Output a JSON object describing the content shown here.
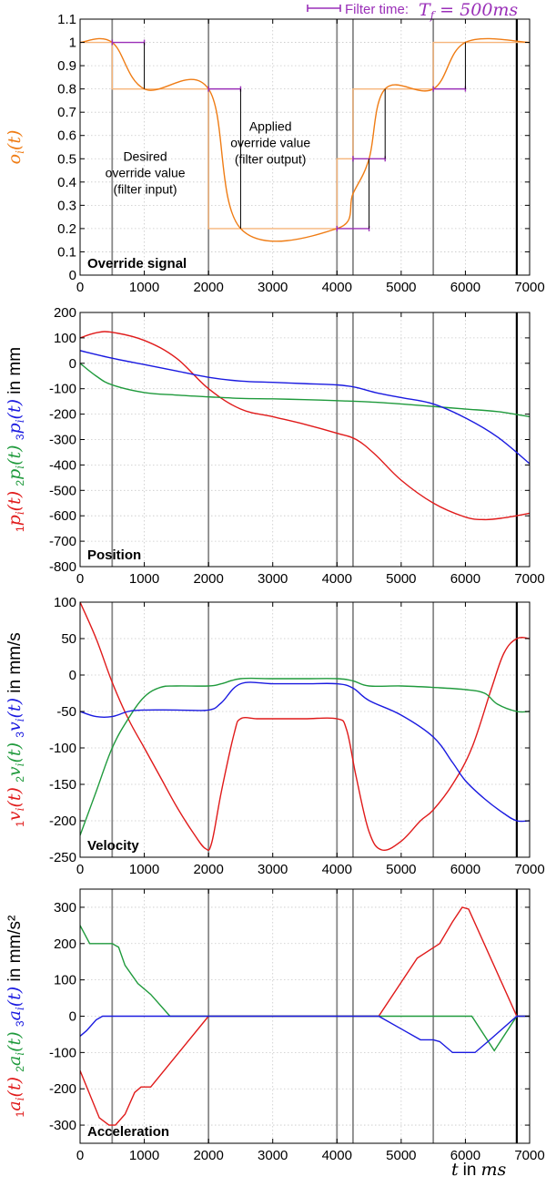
{
  "legend": {
    "filter_prefix": "Filter time:",
    "filter_symbol": "T",
    "filter_sub": "f",
    "filter_value": " = 500ms"
  },
  "x_axis_title": {
    "var": "t",
    "in": "in",
    "unit": "ms"
  },
  "colors": {
    "override": "#ef7c14",
    "override_desired": "#f6b57a",
    "filter_bar": "#9a2fb8",
    "s1": "#e01a1a",
    "s2": "#1f9a3c",
    "s3": "#1a1ae0",
    "event_line": "#888888",
    "stop_line": "#000000"
  },
  "chart_data": [
    {
      "type": "line",
      "id": "override",
      "panel_label": "Override signal",
      "ylabel": [
        {
          "text": "o",
          "sub": "i",
          "arg": "(t)",
          "color": "#ef7c14"
        }
      ],
      "ylabel_suffix": "",
      "xlim": [
        0,
        7000
      ],
      "ylim": [
        0,
        1.1
      ],
      "xticks": [
        0,
        1000,
        2000,
        3000,
        4000,
        5000,
        6000,
        7000
      ],
      "yticks": [
        0,
        0.1,
        0.2,
        0.3,
        0.4,
        0.5,
        0.6,
        0.7,
        0.8,
        0.9,
        1,
        1.1
      ],
      "ytick_labels": [
        "0",
        "0.1",
        "0.2",
        "0.3",
        "0.4",
        "0.5",
        "0.6",
        "0.7",
        "0.8",
        "0.9",
        "1",
        "1.1"
      ],
      "vlines_gray": [
        500,
        2000,
        4000,
        4250,
        5500
      ],
      "vline_black": 6800,
      "annotations": [
        {
          "lines": [
            "Desired",
            "override value",
            "(filter input)"
          ],
          "x": 1000,
          "y": 0.42
        },
        {
          "lines": [
            "Applied",
            "override value",
            "(filter output)"
          ],
          "x": 2950,
          "y": 0.55
        }
      ],
      "series": [
        {
          "name": "",
          "color_key": "override_desired",
          "x": [
            0,
            500,
            500,
            2000,
            2000,
            4000,
            4000,
            4250,
            4250,
            5500,
            5500,
            7000
          ],
          "y": [
            1,
            1,
            0.8,
            0.8,
            0.2,
            0.2,
            0.5,
            0.5,
            0.8,
            0.8,
            1,
            1
          ]
        },
        {
          "name": "",
          "color_key": "override",
          "smooth": true,
          "x": [
            0,
            500,
            1000,
            2000,
            2500,
            4000,
            4250,
            4500,
            4750,
            5500,
            6000,
            7000
          ],
          "y": [
            1,
            1,
            0.8,
            0.8,
            0.2,
            0.2,
            0.35,
            0.5,
            0.8,
            0.8,
            1,
            1
          ]
        }
      ],
      "filter_bars": [
        {
          "x0": 500,
          "x1": 1000,
          "y": 1.0
        },
        {
          "x0": 2000,
          "x1": 2500,
          "y": 0.8
        },
        {
          "x0": 4000,
          "x1": 4500,
          "y": 0.2
        },
        {
          "x0": 4250,
          "x1": 4750,
          "y": 0.5
        },
        {
          "x0": 5500,
          "x1": 6000,
          "y": 0.8
        }
      ],
      "filter_drops": [
        {
          "x": 1000,
          "y0": 1.0,
          "y1": 0.8
        },
        {
          "x": 2500,
          "y0": 0.8,
          "y1": 0.2
        },
        {
          "x": 4500,
          "y0": 0.2,
          "y1": 0.5
        },
        {
          "x": 4750,
          "y0": 0.5,
          "y1": 0.8
        },
        {
          "x": 6000,
          "y0": 0.8,
          "y1": 1.0
        }
      ]
    },
    {
      "type": "line",
      "id": "position",
      "panel_label": "Position",
      "ylabel": [
        {
          "pre": "1",
          "text": "p",
          "sub": "i",
          "arg": "(t)",
          "color": "#e01a1a"
        },
        {
          "pre": "2",
          "text": "p",
          "sub": "i",
          "arg": "(t)",
          "color": "#1f9a3c"
        },
        {
          "pre": "3",
          "text": "p",
          "sub": "i",
          "arg": "(t)",
          "color": "#1a1ae0"
        }
      ],
      "ylabel_suffix": "in mm",
      "xlim": [
        0,
        7000
      ],
      "ylim": [
        -800,
        200
      ],
      "xticks": [
        0,
        1000,
        2000,
        3000,
        4000,
        5000,
        6000,
        7000
      ],
      "yticks": [
        -800,
        -700,
        -600,
        -500,
        -400,
        -300,
        -200,
        -100,
        0,
        100,
        200
      ],
      "ytick_labels": [
        "-800",
        "-700",
        "-600",
        "-500",
        "-400",
        "-300",
        "-200",
        "-100",
        "0",
        "100",
        "200"
      ],
      "vlines_gray": [
        500,
        2000,
        4000,
        4250,
        5500
      ],
      "vline_black": 6800,
      "series": [
        {
          "name": "",
          "color_key": "s1",
          "smooth": true,
          "x": [
            0,
            250,
            500,
            1000,
            1500,
            2000,
            2500,
            3000,
            3500,
            4000,
            4300,
            4600,
            5000,
            5500,
            6000,
            6300,
            6600,
            7000
          ],
          "y": [
            100,
            120,
            122,
            90,
            20,
            -100,
            -180,
            -210,
            -240,
            -275,
            -300,
            -360,
            -460,
            -550,
            -605,
            -615,
            -608,
            -590
          ]
        },
        {
          "name": "",
          "color_key": "s2",
          "smooth": true,
          "x": [
            0,
            250,
            500,
            1000,
            1500,
            2000,
            2500,
            3000,
            3500,
            4000,
            4500,
            5000,
            5500,
            6000,
            6500,
            7000
          ],
          "y": [
            0,
            -50,
            -85,
            -115,
            -125,
            -132,
            -138,
            -140,
            -143,
            -147,
            -152,
            -160,
            -170,
            -180,
            -190,
            -210
          ]
        },
        {
          "name": "",
          "color_key": "s3",
          "smooth": true,
          "x": [
            0,
            500,
            1000,
            1500,
            2000,
            2500,
            3000,
            3500,
            4000,
            4300,
            4600,
            5000,
            5500,
            6000,
            6500,
            7000
          ],
          "y": [
            50,
            20,
            -5,
            -30,
            -55,
            -70,
            -75,
            -80,
            -85,
            -95,
            -115,
            -135,
            -160,
            -215,
            -290,
            -395
          ]
        }
      ]
    },
    {
      "type": "line",
      "id": "velocity",
      "panel_label": "Velocity",
      "ylabel": [
        {
          "pre": "1",
          "text": "v",
          "sub": "i",
          "arg": "(t)",
          "color": "#e01a1a"
        },
        {
          "pre": "2",
          "text": "v",
          "sub": "i",
          "arg": "(t)",
          "color": "#1f9a3c"
        },
        {
          "pre": "3",
          "text": "v",
          "sub": "i",
          "arg": "(t)",
          "color": "#1a1ae0"
        }
      ],
      "ylabel_suffix": "in mm/s",
      "xlim": [
        0,
        7000
      ],
      "ylim": [
        -250,
        100
      ],
      "xticks": [
        0,
        1000,
        2000,
        3000,
        4000,
        5000,
        6000,
        7000
      ],
      "yticks": [
        -250,
        -200,
        -150,
        -100,
        -50,
        0,
        50,
        100
      ],
      "ytick_labels": [
        "-250",
        "-200",
        "-150",
        "-100",
        "-50",
        "0",
        "50",
        "100"
      ],
      "vlines_gray": [
        500,
        2000,
        4000,
        4250,
        5500
      ],
      "vline_black": 6800,
      "series": [
        {
          "name": "",
          "color_key": "s1",
          "smooth": true,
          "x": [
            0,
            250,
            500,
            750,
            1000,
            1250,
            1500,
            1750,
            1950,
            2050,
            2200,
            2400,
            2500,
            2750,
            3000,
            3500,
            4000,
            4150,
            4300,
            4500,
            4700,
            5000,
            5300,
            5500,
            5800,
            6100,
            6400,
            6600,
            6800,
            7000
          ],
          "y": [
            100,
            50,
            -10,
            -60,
            -100,
            -140,
            -180,
            -215,
            -238,
            -230,
            -160,
            -80,
            -60,
            -60,
            -60,
            -60,
            -60,
            -75,
            -140,
            -215,
            -240,
            -228,
            -200,
            -185,
            -150,
            -100,
            -20,
            30,
            50,
            50
          ]
        },
        {
          "name": "",
          "color_key": "s2",
          "smooth": true,
          "x": [
            0,
            250,
            500,
            750,
            1000,
            1250,
            1500,
            2000,
            2200,
            2500,
            3000,
            3500,
            4000,
            4250,
            4500,
            5000,
            5500,
            6000,
            6300,
            6500,
            6800,
            7000
          ],
          "y": [
            -220,
            -160,
            -100,
            -60,
            -30,
            -17,
            -15,
            -15,
            -12,
            -5,
            -5,
            -5,
            -5,
            -8,
            -15,
            -15,
            -17,
            -20,
            -25,
            -40,
            -50,
            -50
          ]
        },
        {
          "name": "",
          "color_key": "s3",
          "smooth": true,
          "x": [
            0,
            250,
            500,
            750,
            1000,
            1500,
            2000,
            2200,
            2500,
            3000,
            3500,
            4000,
            4250,
            4500,
            5000,
            5500,
            5800,
            6000,
            6300,
            6600,
            6800,
            7000
          ],
          "y": [
            -50,
            -57,
            -57,
            -50,
            -48,
            -48,
            -48,
            -38,
            -12,
            -12,
            -12,
            -12,
            -18,
            -35,
            -55,
            -85,
            -120,
            -145,
            -170,
            -190,
            -200,
            -200
          ]
        }
      ]
    },
    {
      "type": "line",
      "id": "acceleration",
      "panel_label": "Acceleration",
      "ylabel": [
        {
          "pre": "1",
          "text": "a",
          "sub": "i",
          "arg": "(t)",
          "color": "#e01a1a"
        },
        {
          "pre": "2",
          "text": "a",
          "sub": "i",
          "arg": "(t)",
          "color": "#1f9a3c"
        },
        {
          "pre": "3",
          "text": "a",
          "sub": "i",
          "arg": "(t)",
          "color": "#1a1ae0"
        }
      ],
      "ylabel_suffix": "in mm/s²",
      "xlim": [
        0,
        7000
      ],
      "ylim": [
        -350,
        350
      ],
      "xticks": [
        0,
        1000,
        2000,
        3000,
        4000,
        5000,
        6000,
        7000
      ],
      "yticks": [
        -300,
        -200,
        -100,
        0,
        100,
        200,
        300
      ],
      "ytick_labels": [
        "-300",
        "-200",
        "-100",
        "0",
        "100",
        "200",
        "300"
      ],
      "vlines_gray": [
        500,
        2000,
        4000,
        4250,
        5500
      ],
      "vline_black": 6800,
      "series": [
        {
          "name": "",
          "color_key": "s1",
          "x": [
            0,
            300,
            450,
            550,
            700,
            850,
            950,
            1100,
            2000,
            4000,
            4650,
            5250,
            5600,
            5800,
            5950,
            6050,
            6800,
            7000
          ],
          "y": [
            -150,
            -280,
            -300,
            -300,
            -270,
            -210,
            -195,
            -195,
            0,
            0,
            0,
            160,
            200,
            260,
            300,
            295,
            0,
            0
          ]
        },
        {
          "name": "",
          "color_key": "s2",
          "x": [
            0,
            150,
            300,
            500,
            600,
            700,
            900,
            1100,
            1400,
            2000,
            4000,
            6100,
            6450,
            6800,
            7000
          ],
          "y": [
            250,
            200,
            200,
            200,
            190,
            140,
            90,
            60,
            0,
            0,
            0,
            0,
            -95,
            0,
            0
          ]
        },
        {
          "name": "",
          "color_key": "s3",
          "x": [
            0,
            100,
            250,
            350,
            500,
            2000,
            4000,
            4650,
            5000,
            5300,
            5500,
            5600,
            5800,
            6150,
            6350,
            6800,
            7000
          ],
          "y": [
            -55,
            -40,
            -10,
            0,
            0,
            0,
            0,
            0,
            -35,
            -65,
            -65,
            -70,
            -100,
            -100,
            -70,
            0,
            0
          ]
        }
      ]
    }
  ]
}
